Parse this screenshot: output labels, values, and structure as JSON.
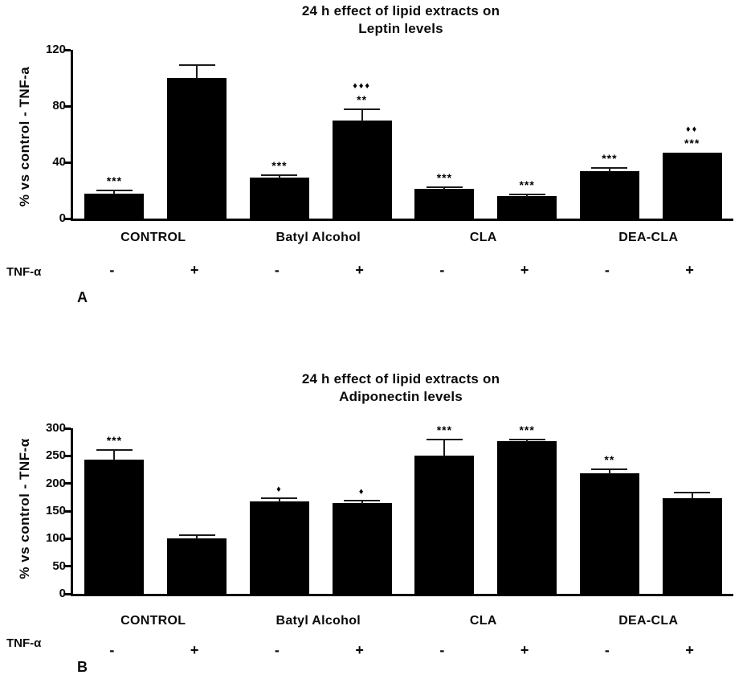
{
  "chart_data": [
    {
      "type": "bar",
      "panel_label": "A",
      "title_lines": [
        "24 h effect of lipid extracts  on",
        "Leptin levels"
      ],
      "ylabel": "% vs control - TNF-a",
      "ylim": [
        0,
        120
      ],
      "yticks": [
        0,
        40,
        80,
        120
      ],
      "grid": false,
      "legend": "none",
      "bar_color": "#000000",
      "tnf_label": "TNF-α",
      "groups": [
        "CONTROL",
        "Batyl Alcohol",
        "CLA",
        "DEA-CLA"
      ],
      "tnf_signs": [
        "-",
        "+",
        "-",
        "+",
        "-",
        "+",
        "-",
        "+"
      ],
      "bars": [
        {
          "group": "CONTROL",
          "tnf": "-",
          "value": 18,
          "error": 2,
          "stars": "***",
          "diamonds": ""
        },
        {
          "group": "CONTROL",
          "tnf": "+",
          "value": 100,
          "error": 9,
          "stars": "",
          "diamonds": ""
        },
        {
          "group": "Batyl Alcohol",
          "tnf": "-",
          "value": 29,
          "error": 2,
          "stars": "***",
          "diamonds": ""
        },
        {
          "group": "Batyl Alcohol",
          "tnf": "+",
          "value": 70,
          "error": 8,
          "stars": "**",
          "diamonds": "♦♦♦"
        },
        {
          "group": "CLA",
          "tnf": "-",
          "value": 21,
          "error": 1.5,
          "stars": "***",
          "diamonds": ""
        },
        {
          "group": "CLA",
          "tnf": "+",
          "value": 16,
          "error": 1,
          "stars": "***",
          "diamonds": ""
        },
        {
          "group": "DEA-CLA",
          "tnf": "-",
          "value": 34,
          "error": 2,
          "stars": "***",
          "diamonds": ""
        },
        {
          "group": "DEA-CLA",
          "tnf": "+",
          "value": 47,
          "error": 0,
          "stars": "***",
          "diamonds": "♦♦"
        }
      ]
    },
    {
      "type": "bar",
      "panel_label": "B",
      "title_lines": [
        "24 h effect of lipid extracts  on",
        "Adiponectin levels"
      ],
      "ylabel": "% vs control - TNF-α",
      "ylim": [
        0,
        300
      ],
      "yticks": [
        0,
        50,
        100,
        150,
        200,
        250,
        300
      ],
      "grid": false,
      "legend": "none",
      "bar_color": "#000000",
      "tnf_label": "TNF-α",
      "groups": [
        "CONTROL",
        "Batyl Alcohol",
        "CLA",
        "DEA-CLA"
      ],
      "tnf_signs": [
        "-",
        "+",
        "-",
        "+",
        "-",
        "+",
        "-",
        "+"
      ],
      "bars": [
        {
          "group": "CONTROL",
          "tnf": "-",
          "value": 243,
          "error": 17,
          "stars": "***",
          "diamonds": ""
        },
        {
          "group": "CONTROL",
          "tnf": "+",
          "value": 100,
          "error": 6,
          "stars": "",
          "diamonds": ""
        },
        {
          "group": "Batyl Alcohol",
          "tnf": "-",
          "value": 167,
          "error": 7,
          "stars": "",
          "diamonds": "♦"
        },
        {
          "group": "Batyl Alcohol",
          "tnf": "+",
          "value": 164,
          "error": 5,
          "stars": "",
          "diamonds": "♦"
        },
        {
          "group": "CLA",
          "tnf": "-",
          "value": 251,
          "error": 28,
          "stars": "***",
          "diamonds": ""
        },
        {
          "group": "CLA",
          "tnf": "+",
          "value": 276,
          "error": 3,
          "stars": "***",
          "diamonds": ""
        },
        {
          "group": "DEA-CLA",
          "tnf": "-",
          "value": 219,
          "error": 7,
          "stars": "**",
          "diamonds": ""
        },
        {
          "group": "DEA-CLA",
          "tnf": "+",
          "value": 174,
          "error": 9,
          "stars": "",
          "diamonds": ""
        }
      ]
    }
  ]
}
